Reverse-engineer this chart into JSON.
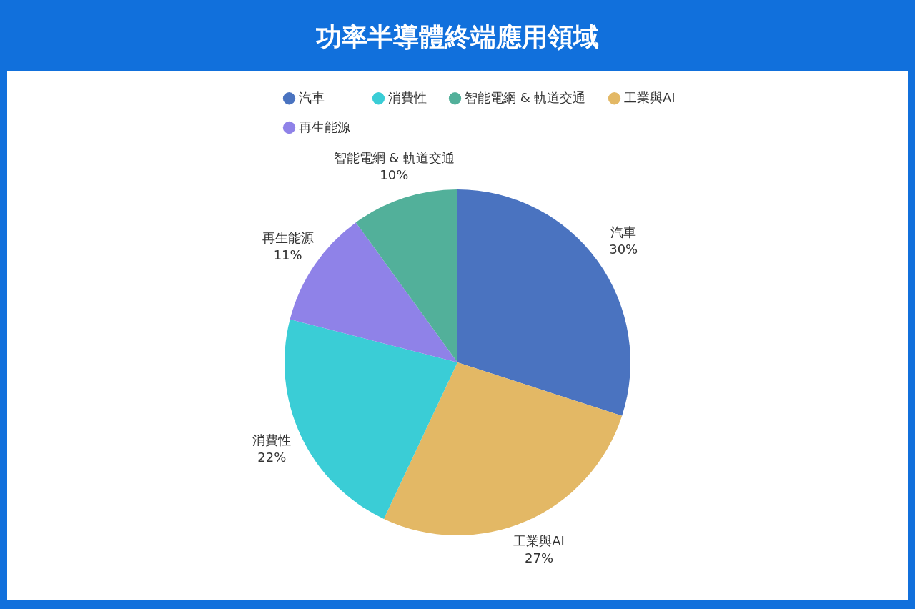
{
  "chart_data": {
    "type": "pie",
    "title": "功率半導體終端應用領域",
    "categories": [
      "汽車",
      "工業與AI",
      "消費性",
      "再生能源",
      "智能電網 & 軌道交通"
    ],
    "values": [
      30,
      27,
      22,
      11,
      10
    ],
    "colors": [
      "#4a73c0",
      "#e3b865",
      "#3acdd6",
      "#8f82e8",
      "#52b09a"
    ],
    "value_labels": [
      "30%",
      "27%",
      "22%",
      "11%",
      "10%"
    ],
    "legend": "top"
  }
}
